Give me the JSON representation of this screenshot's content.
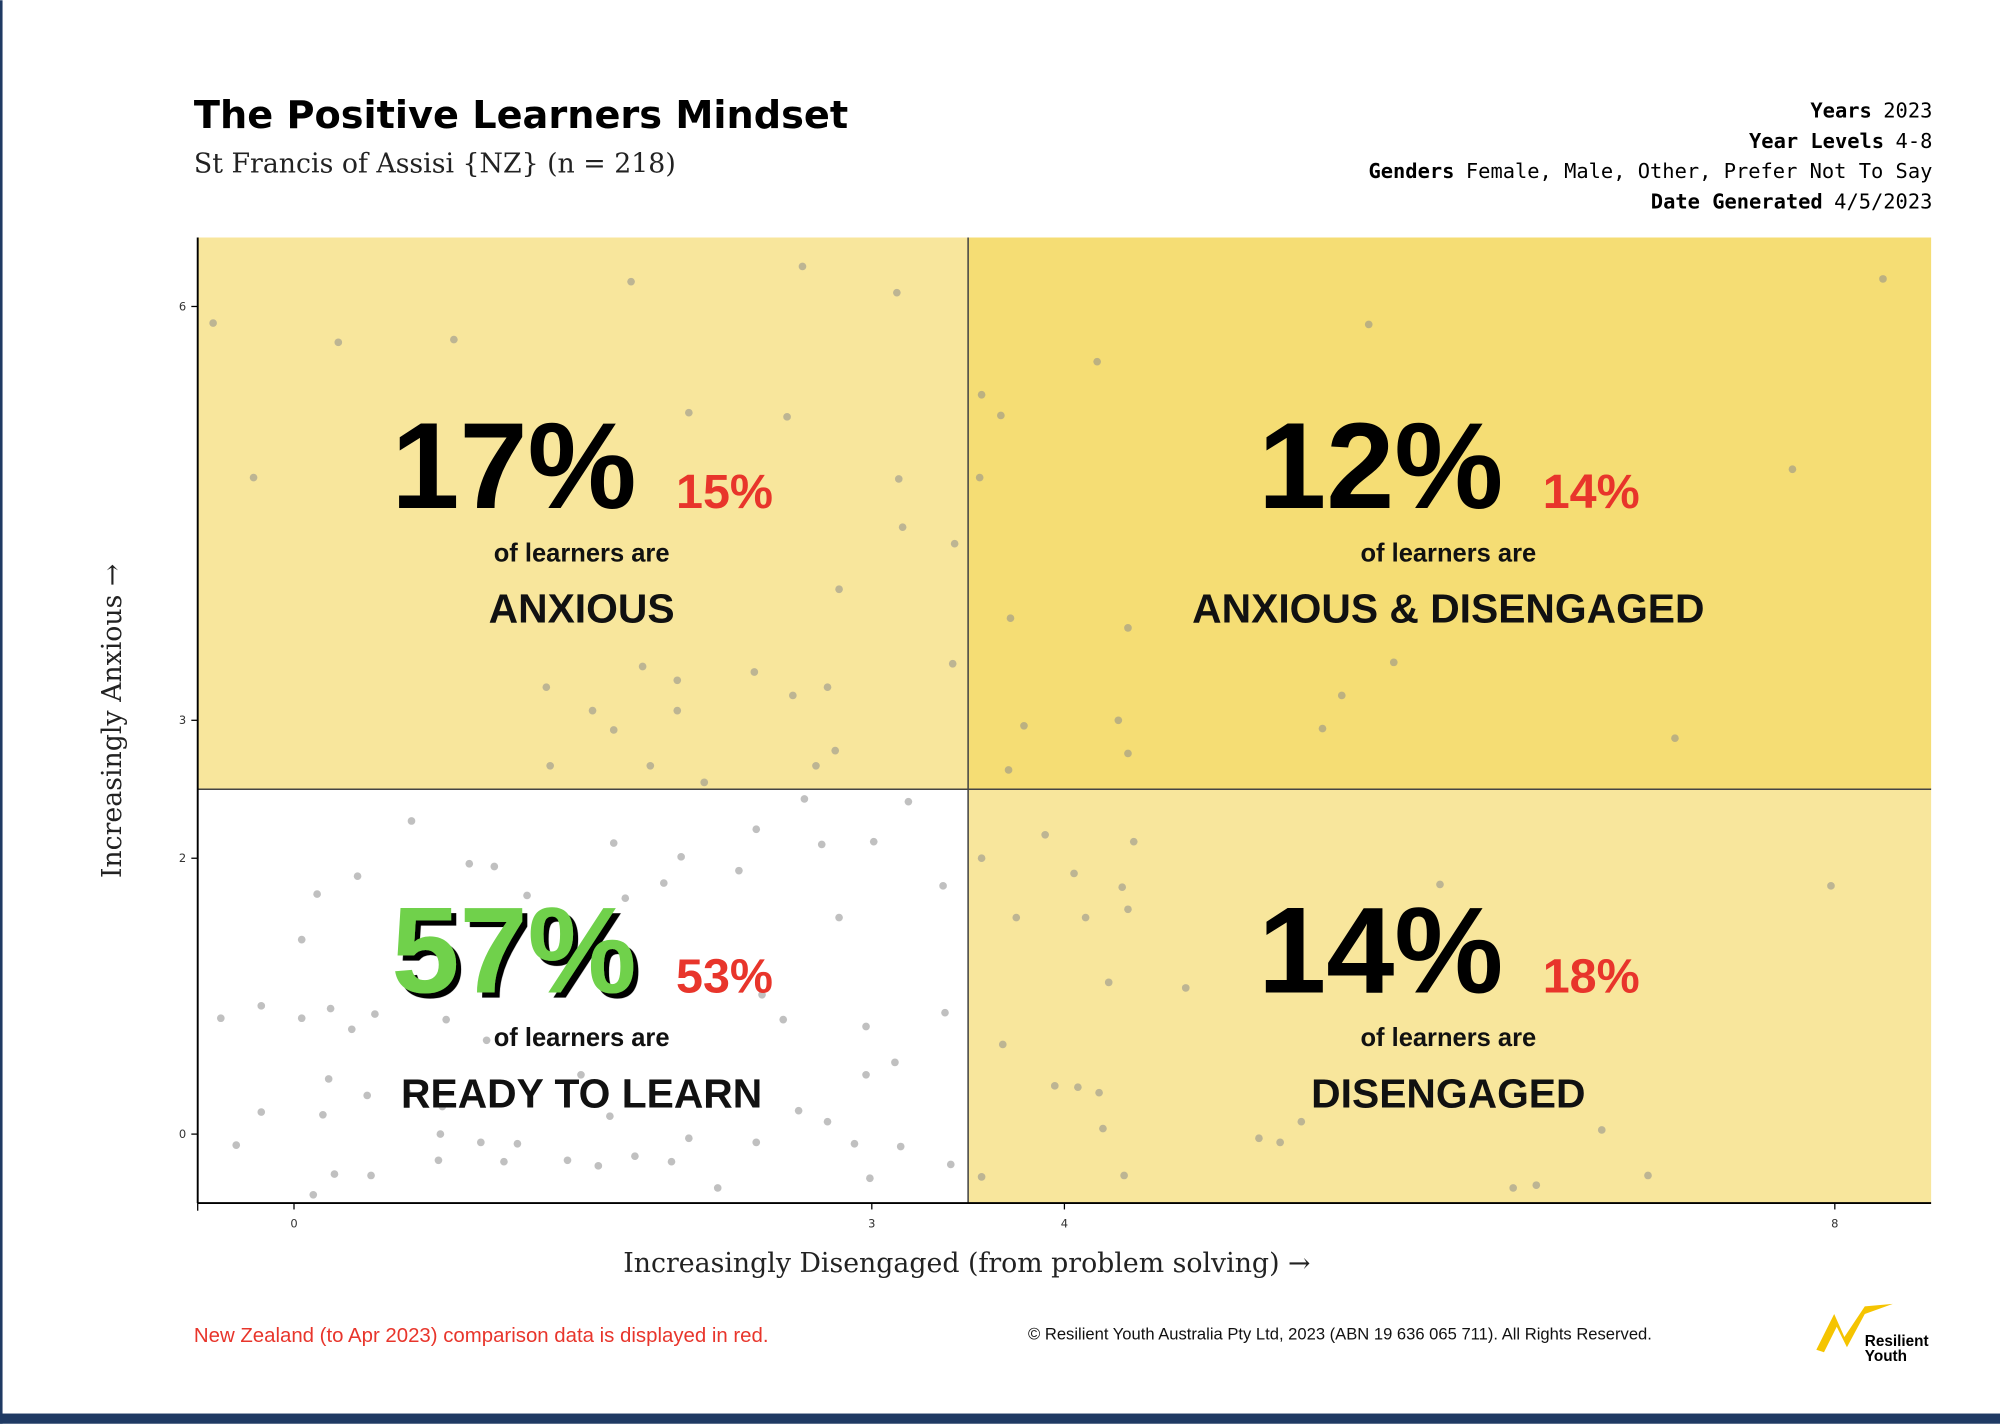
{
  "header": {
    "title": "The Positive Learners Mindset",
    "subtitle": "St Francis of Assisi {NZ} (n = 218)",
    "meta": [
      {
        "key": "Years",
        "value": "2023"
      },
      {
        "key": "Year Levels",
        "value": "4-8"
      },
      {
        "key": "Genders",
        "value": "Female, Male, Other, Prefer Not To Say"
      },
      {
        "key": "Date Generated",
        "value": "4/5/2023"
      }
    ]
  },
  "chart_data": {
    "type": "scatter",
    "x_label": "Increasingly Disengaged (from problem solving) →",
    "y_label": "Increasingly Anxious →",
    "xlim": [
      -0.5,
      8.5
    ],
    "ylim": [
      -0.5,
      6.5
    ],
    "xticks": [
      0,
      3,
      4,
      8
    ],
    "yticks": [
      0,
      2,
      3,
      6
    ],
    "dividers": {
      "x": 3.5,
      "y": 2.5
    },
    "color": "#8c8c8c",
    "x": [
      -0.42,
      0.23,
      0.83,
      1.75,
      2.64,
      3.13,
      -0.21,
      2.05,
      2.56,
      3.14,
      3.16,
      3.43,
      2.83,
      3.42,
      1.81,
      2.39,
      1.31,
      1.99,
      1.55,
      2.59,
      2.77,
      1.66,
      1.99,
      1.33,
      1.85,
      2.13,
      2.71,
      2.81,
      8.25,
      5.58,
      4.17,
      3.57,
      3.67,
      3.56,
      7.78,
      3.72,
      4.33,
      5.71,
      5.44,
      3.79,
      4.28,
      5.34,
      7.17,
      4.33,
      3.71,
      3.9,
      4.36,
      3.57,
      4.05,
      4.3,
      5.95,
      7.98,
      4.33,
      3.75,
      4.11,
      6.09,
      4.23,
      4.63,
      3.68,
      3.95,
      4.07,
      4.18,
      5.23,
      4.2,
      5.01,
      5.12,
      6.79,
      4.31,
      6.33,
      6.45,
      7.03,
      3.57,
      0.61,
      2.65,
      3.19,
      1.66,
      2.4,
      2.74,
      3.01,
      0.91,
      1.04,
      2.01,
      0.33,
      1.92,
      2.31,
      0.12,
      1.21,
      1.72,
      3.37,
      2.83,
      0.04,
      -0.38,
      -0.17,
      0.04,
      0.19,
      0.3,
      0.42,
      0.79,
      1.0,
      2.43,
      2.54,
      3.38,
      2.97,
      3.12,
      2.97,
      -0.17,
      0.15,
      0.38,
      0.59,
      0.77,
      -0.3,
      0.76,
      0.97,
      1.16,
      0.75,
      1.09,
      1.42,
      1.58,
      1.77,
      1.96,
      0.21,
      0.4,
      2.2,
      0.1,
      2.99,
      3.41,
      2.77,
      2.62,
      2.91,
      3.15,
      2.4,
      2.05,
      1.64,
      1.49,
      0.18
    ],
    "values": [
      5.88,
      5.74,
      5.76,
      6.18,
      6.29,
      6.1,
      4.76,
      5.23,
      5.2,
      4.75,
      4.4,
      4.28,
      3.95,
      3.41,
      3.39,
      3.35,
      3.24,
      3.29,
      3.07,
      3.18,
      3.24,
      2.93,
      3.07,
      2.67,
      2.67,
      2.55,
      2.67,
      2.78,
      6.2,
      5.87,
      5.6,
      5.36,
      5.21,
      4.76,
      4.82,
      3.74,
      3.67,
      3.42,
      3.18,
      2.96,
      3.0,
      2.94,
      2.87,
      2.76,
      2.64,
      2.17,
      2.12,
      2.0,
      1.89,
      1.79,
      1.81,
      1.8,
      1.63,
      1.57,
      1.57,
      1.34,
      1.1,
      1.06,
      0.65,
      0.35,
      0.34,
      0.3,
      0.09,
      0.04,
      -0.03,
      -0.06,
      0.03,
      -0.3,
      -0.39,
      -0.37,
      -0.3,
      -0.31,
      2.27,
      2.43,
      2.41,
      2.11,
      2.21,
      2.1,
      2.12,
      1.96,
      1.94,
      2.01,
      1.87,
      1.82,
      1.91,
      1.74,
      1.73,
      1.71,
      1.8,
      1.57,
      1.41,
      0.84,
      0.93,
      0.84,
      0.91,
      0.76,
      0.87,
      0.83,
      0.68,
      1.01,
      0.83,
      0.88,
      0.78,
      0.52,
      0.43,
      0.16,
      0.14,
      0.28,
      0.3,
      0.2,
      -0.08,
      0.0,
      -0.06,
      -0.07,
      -0.19,
      -0.2,
      -0.19,
      -0.23,
      -0.16,
      -0.2,
      -0.29,
      -0.3,
      -0.39,
      -0.44,
      -0.32,
      -0.22,
      0.09,
      0.17,
      -0.07,
      -0.09,
      -0.06,
      -0.03,
      0.13,
      0.43,
      0.4
    ],
    "quadrants": [
      {
        "position": "top-left",
        "name": "ANXIOUS",
        "caption": "of learners are",
        "value": 17,
        "value_label": "17%",
        "comparison": 15,
        "comparison_label": "15%",
        "color": "#f8e69c",
        "value_color": "#000000",
        "shadow": false
      },
      {
        "position": "top-right",
        "name": "ANXIOUS & DISENGAGED",
        "caption": "of learners are",
        "value": 12,
        "value_label": "12%",
        "comparison": 14,
        "comparison_label": "14%",
        "color": "#f5dd74",
        "value_color": "#000000",
        "shadow": false
      },
      {
        "position": "bottom-left",
        "name": "READY TO LEARN",
        "caption": "of learners are",
        "value": 57,
        "value_label": "57%",
        "comparison": 53,
        "comparison_label": "53%",
        "color": "#ffffff",
        "value_color": "#6fd14b",
        "shadow": true
      },
      {
        "position": "bottom-right",
        "name": "DISENGAGED",
        "caption": "of learners are",
        "value": 14,
        "value_label": "14%",
        "comparison": 18,
        "comparison_label": "18%",
        "color": "#f8e69c",
        "value_color": "#000000",
        "shadow": false
      }
    ],
    "comparison_color": "#e8352b"
  },
  "footer": {
    "note": "New Zealand (to Apr 2023) comparison data is displayed in red.",
    "copyright": "© Resilient Youth Australia Pty Ltd, 2023 (ABN 19 636 065 711). All Rights Reserved.",
    "logo": [
      "Resilient",
      "Youth"
    ]
  }
}
